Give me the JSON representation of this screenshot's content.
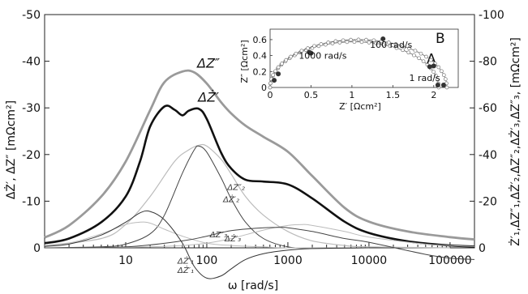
{
  "chart_data": {
    "type": "line",
    "title": "",
    "xlabel": "ω  [rad/s]",
    "ylabel_left": "ΔŻ′, ΔZ″ [mΩcm²]",
    "ylabel_right": "Ż′₁,ΔZ″₁,ΔŻ′₂,ΔZ″₂,ΔŻ′₃,ΔZ″₃,  [mΩcm²]",
    "x_scale": "log",
    "xlim": [
      1,
      200000
    ],
    "xticks": [
      {
        "value": 10,
        "label": "10"
      },
      {
        "value": 100,
        "label": "100"
      },
      {
        "value": 1000,
        "label": "1000"
      },
      {
        "value": 10000,
        "label": "10000"
      },
      {
        "value": 100000,
        "label": "100000"
      }
    ],
    "ylim_left": [
      0,
      -50
    ],
    "yticks_left": [
      {
        "value": 0,
        "label": "0"
      },
      {
        "value": -10,
        "label": "-10"
      },
      {
        "value": -20,
        "label": "-20"
      },
      {
        "value": -30,
        "label": "-30"
      },
      {
        "value": -40,
        "label": "-40"
      },
      {
        "value": -50,
        "label": "-50"
      }
    ],
    "ylim_right": [
      0,
      -100
    ],
    "yticks_right": [
      {
        "value": 0,
        "label": "0"
      },
      {
        "value": -20,
        "label": "-20"
      },
      {
        "value": -40,
        "label": "-40"
      },
      {
        "value": -60,
        "label": "-60"
      },
      {
        "value": -80,
        "label": "-80"
      },
      {
        "value": -100,
        "label": "-100"
      }
    ],
    "series": [
      {
        "name": "ΔZ″",
        "axis": "left",
        "color": "#9a9a9a",
        "width": 2.8,
        "x": [
          1,
          2,
          5,
          10,
          20,
          30,
          50,
          70,
          100,
          150,
          200,
          300,
          500,
          1000,
          2000,
          5000,
          10000,
          30000,
          100000,
          200000
        ],
        "y": [
          -2.2,
          -4.8,
          -11,
          -18.5,
          -29.5,
          -35.5,
          -37.8,
          -37.6,
          -35.2,
          -31.2,
          -28.8,
          -26.2,
          -23.8,
          -20.6,
          -15.4,
          -8.6,
          -5.6,
          -3.5,
          -2.3,
          -1.8
        ]
      },
      {
        "name": "ΔŻ′",
        "axis": "left",
        "color": "#111111",
        "width": 2.6,
        "x": [
          1,
          2,
          5,
          10,
          15,
          20,
          30,
          40,
          50,
          60,
          80,
          100,
          150,
          200,
          300,
          500,
          1000,
          2000,
          5000,
          10000,
          30000,
          100000,
          200000
        ],
        "y": [
          -1.0,
          -2.0,
          -5.5,
          -11,
          -18.5,
          -26,
          -30.3,
          -29.6,
          -28.4,
          -29.4,
          -29.8,
          -27.6,
          -20.4,
          -17,
          -14.6,
          -14.2,
          -13.6,
          -10.6,
          -5.6,
          -3.2,
          -1.4,
          -0.5,
          -0.3
        ]
      },
      {
        "name": "ΔZ″₂",
        "axis": "right",
        "color": "#bbbbbb",
        "width": 1.2,
        "x": [
          1,
          5,
          10,
          20,
          40,
          60,
          80,
          100,
          150,
          200,
          300,
          500,
          1000,
          2000,
          5000,
          10000,
          100000
        ],
        "y": [
          -1,
          -4,
          -10,
          -22,
          -37,
          -42,
          -44,
          -43.6,
          -38,
          -31.6,
          -22,
          -14,
          -7,
          -3,
          -1,
          -0.4,
          0
        ]
      },
      {
        "name": "ΔŻ′₂",
        "axis": "right",
        "color": "#444444",
        "width": 1.0,
        "x": [
          1,
          5,
          10,
          20,
          30,
          50,
          70,
          80,
          100,
          150,
          200,
          300,
          500,
          1000,
          2000,
          5000,
          10000
        ],
        "y": [
          0,
          -0.4,
          -1.6,
          -6,
          -14,
          -32,
          -42,
          -43.6,
          -41,
          -30,
          -21,
          -11,
          -4,
          -0.4,
          0.2,
          0.1,
          0
        ]
      },
      {
        "name": "ΔZ″₁",
        "axis": "right",
        "color": "#bbbbbb",
        "width": 1.0,
        "x": [
          1,
          2,
          5,
          10,
          15,
          20,
          30,
          50,
          100,
          200,
          500,
          1000,
          10000
        ],
        "y": [
          -1,
          -2,
          -6,
          -10,
          -11,
          -10.6,
          -8,
          -5,
          -2,
          -1,
          -0.4,
          0,
          0
        ]
      },
      {
        "name": "ΔŻ′₁",
        "axis": "right",
        "color": "#333333",
        "width": 1.0,
        "x": [
          1,
          2,
          5,
          10,
          15,
          20,
          30,
          50,
          70,
          100,
          150,
          200,
          300,
          500,
          1000,
          2000,
          10000
        ],
        "y": [
          -0.6,
          -1.6,
          -5.5,
          -11,
          -15,
          -15.6,
          -12,
          -2,
          8,
          13,
          12,
          9,
          5,
          2.5,
          1,
          0.3,
          0
        ]
      },
      {
        "name": "ΔZ″₃",
        "axis": "right",
        "color": "#bbbbbb",
        "width": 1.0,
        "x": [
          1,
          10,
          50,
          100,
          200,
          500,
          1000,
          1500,
          2000,
          5000,
          10000,
          50000,
          100000,
          200000
        ],
        "y": [
          0,
          -0.2,
          -1,
          -2,
          -4,
          -7.6,
          -9.6,
          -10,
          -9.6,
          -7,
          -4.6,
          -1.6,
          -1,
          -0.6
        ]
      },
      {
        "name": "ΔŻ′₃",
        "axis": "right",
        "color": "#444444",
        "width": 1.0,
        "x": [
          1,
          10,
          50,
          100,
          200,
          500,
          800,
          1000,
          2000,
          5000,
          10000,
          50000,
          100000,
          200000
        ],
        "y": [
          0,
          -0.4,
          -3,
          -5,
          -7.4,
          -8.6,
          -8.8,
          -8.6,
          -7,
          -4,
          -2.4,
          2.8,
          4.4,
          5
        ]
      }
    ],
    "series_labels": [
      {
        "text": "ΔZ″",
        "x": 105,
        "y": -38.6,
        "big": true
      },
      {
        "text": "ΔŻ′",
        "x": 105,
        "y": -31.3,
        "big": true
      },
      {
        "text": "ΔZ″₂",
        "x": 230,
        "y": -12.4
      },
      {
        "text": "ΔŻ′₂",
        "x": 200,
        "y": -9.8
      },
      {
        "text": "ΔZ″₃",
        "x": 140,
        "y": -2.3
      },
      {
        "text": "ΔŻ′₃",
        "x": 210,
        "y": -1.4
      },
      {
        "text": "ΔŻ′₁",
        "x": 55,
        "y": 3.4
      },
      {
        "text": "ΔŻ′₁",
        "x": 55,
        "y": 5.4
      }
    ],
    "inset": {
      "type": "scatter",
      "xlabel": "Z′ [Ωcm²]",
      "ylabel": "Z″ [Ωcm²]",
      "xlim": [
        0,
        2.2
      ],
      "ylim": [
        0,
        0.65
      ],
      "xticks": [
        {
          "value": 0,
          "label": "0"
        },
        {
          "value": 0.5,
          "label": "0.5"
        },
        {
          "value": 1,
          "label": "1"
        },
        {
          "value": 1.5,
          "label": "1.5"
        },
        {
          "value": 2,
          "label": "2"
        }
      ],
      "yticks": [
        {
          "value": 0,
          "label": "0"
        },
        {
          "value": 0.2,
          "label": "0.2"
        },
        {
          "value": 0.4,
          "label": "0.4"
        },
        {
          "value": 0.6,
          "label": "0.6"
        }
      ],
      "curves": [
        {
          "name": "A",
          "center": 1.03,
          "radius": 1.03
        },
        {
          "name": "B",
          "center": 1.08,
          "radius": 1.08
        }
      ],
      "annotations": [
        {
          "text": "100 rad/s",
          "x": 1.22,
          "y": 0.5
        },
        {
          "text": "1000 rad/s",
          "x": 0.35,
          "y": 0.36
        },
        {
          "text": "1 rad/s",
          "x": 1.7,
          "y": 0.08
        }
      ],
      "highlight_points": [
        {
          "x": 0.1,
          "y": 0.17
        },
        {
          "x": 0.5,
          "y": 0.43
        },
        {
          "x": 0.48,
          "y": 0.44
        },
        {
          "x": 1.38,
          "y": 0.61
        },
        {
          "x": 1.95,
          "y": 0.26
        },
        {
          "x": 2.0,
          "y": 0.27
        },
        {
          "x": 2.05,
          "y": 0.03
        },
        {
          "x": 2.12,
          "y": 0.03
        },
        {
          "x": 0.05,
          "y": 0.09
        }
      ]
    }
  }
}
